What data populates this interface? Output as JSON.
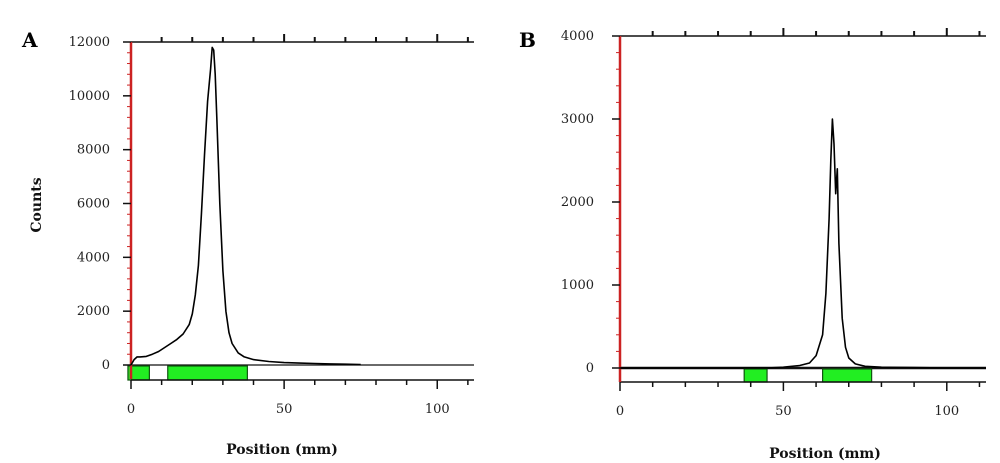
{
  "colors": {
    "curve": "#000000",
    "y_axis": "#cc2222",
    "axis": "#111111",
    "region_fill": "#22ee22",
    "region_stroke": "#115511"
  },
  "chart_data": [
    {
      "panel_label": "A",
      "type": "line",
      "xlabel": "Position (mm)",
      "ylabel": "Counts",
      "xlim": [
        0,
        112
      ],
      "ylim": [
        0,
        12000
      ],
      "x_ticks": [
        0,
        50,
        100
      ],
      "y_ticks": [
        0,
        2000,
        4000,
        6000,
        8000,
        10000,
        12000
      ],
      "grid": false,
      "series": [
        {
          "x": [
            0,
            1,
            2,
            3,
            5,
            7,
            9,
            11,
            13,
            15,
            17,
            19,
            20,
            21,
            22,
            23,
            24,
            25,
            26,
            26.5,
            27,
            27.5,
            28,
            29,
            30,
            31,
            32,
            33,
            35,
            37,
            40,
            45,
            50,
            55,
            60,
            65,
            70,
            75
          ],
          "y": [
            0,
            200,
            300,
            300,
            320,
            400,
            500,
            650,
            800,
            950,
            1150,
            1500,
            1900,
            2600,
            3700,
            5600,
            7800,
            9800,
            11000,
            11800,
            11700,
            10800,
            9200,
            6000,
            3500,
            2000,
            1200,
            800,
            450,
            300,
            200,
            130,
            90,
            70,
            55,
            40,
            30,
            20
          ]
        }
      ],
      "regions": [
        {
          "start": -1,
          "end": 6
        },
        {
          "start": 12,
          "end": 38
        }
      ]
    },
    {
      "panel_label": "B",
      "type": "line",
      "xlabel": "Position (mm)",
      "ylabel": "",
      "xlim": [
        0,
        112
      ],
      "ylim": [
        0,
        4000
      ],
      "x_ticks": [
        0,
        50,
        100
      ],
      "y_ticks": [
        0,
        1000,
        2000,
        3000,
        4000
      ],
      "grid": false,
      "series": [
        {
          "x": [
            0,
            10,
            20,
            30,
            40,
            45,
            50,
            55,
            58,
            60,
            62,
            63,
            64,
            64.5,
            65,
            65.5,
            66,
            66.5,
            67,
            68,
            69,
            70,
            72,
            75,
            80,
            90,
            100,
            112
          ],
          "y": [
            0,
            0,
            0,
            0,
            0,
            0,
            10,
            30,
            60,
            150,
            400,
            900,
            1800,
            2500,
            3000,
            2700,
            2100,
            2400,
            1500,
            600,
            250,
            120,
            50,
            20,
            10,
            5,
            0,
            0
          ]
        }
      ],
      "regions": [
        {
          "start": 38,
          "end": 45
        },
        {
          "start": 62,
          "end": 77
        }
      ]
    }
  ]
}
